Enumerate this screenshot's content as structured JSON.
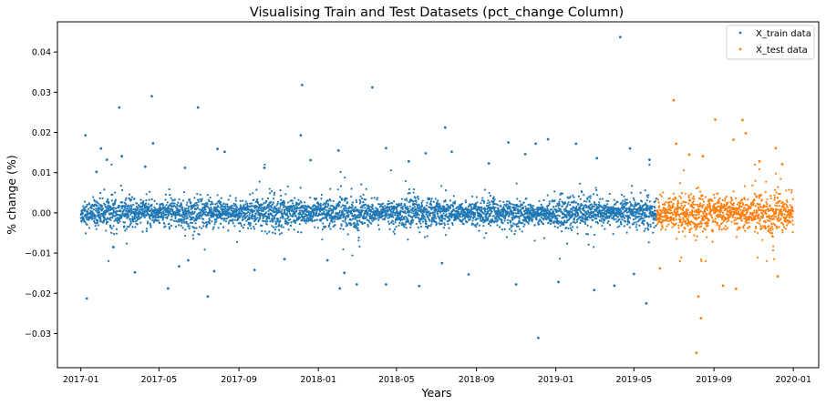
{
  "chart_data": {
    "type": "scatter",
    "title": "Visualising Train and Test Datasets (pct_change Column)",
    "xlabel": "Years",
    "ylabel": "% change (%)",
    "x_ticks": [
      "2017-01",
      "2017-05",
      "2017-09",
      "2018-01",
      "2018-05",
      "2018-09",
      "2019-01",
      "2019-05",
      "2019-09",
      "2020-01"
    ],
    "x_tick_values": [
      "2017-01-01",
      "2017-05-01",
      "2017-09-01",
      "2018-01-01",
      "2018-05-01",
      "2018-09-01",
      "2019-01-01",
      "2019-05-01",
      "2019-09-01",
      "2020-01-01"
    ],
    "y_ticks": [
      "−0.03",
      "−0.02",
      "−0.01",
      "0.00",
      "0.01",
      "0.02",
      "0.03",
      "0.04"
    ],
    "y_tick_values": [
      -0.03,
      -0.02,
      -0.01,
      0.0,
      0.01,
      0.02,
      0.03,
      0.04
    ],
    "xlim": [
      "2016-11-26",
      "2020-02-09"
    ],
    "ylim": [
      -0.0385,
      0.0475
    ],
    "grid": false,
    "legend_position": "top-right",
    "series": [
      {
        "name": "X_train data",
        "color": "#1f77b4",
        "x_range": [
          "2017-01-01",
          "2019-06-04"
        ],
        "typical_spread": 0.0035,
        "points": [
          {
            "x": "2017-01-08",
            "y": 0.0193
          },
          {
            "x": "2017-01-10",
            "y": -0.0213
          },
          {
            "x": "2017-01-25",
            "y": 0.0102
          },
          {
            "x": "2017-02-01",
            "y": 0.016
          },
          {
            "x": "2017-02-10",
            "y": 0.0132
          },
          {
            "x": "2017-02-20",
            "y": -0.0085
          },
          {
            "x": "2017-03-01",
            "y": 0.0262
          },
          {
            "x": "2017-03-05",
            "y": 0.0141
          },
          {
            "x": "2017-03-25",
            "y": -0.0148
          },
          {
            "x": "2017-04-10",
            "y": 0.0115
          },
          {
            "x": "2017-04-20",
            "y": 0.029
          },
          {
            "x": "2017-04-22",
            "y": 0.0173
          },
          {
            "x": "2017-05-15",
            "y": -0.0188
          },
          {
            "x": "2017-06-01",
            "y": -0.0133
          },
          {
            "x": "2017-06-10",
            "y": 0.0112
          },
          {
            "x": "2017-06-15",
            "y": -0.0118
          },
          {
            "x": "2017-06-30",
            "y": 0.0262
          },
          {
            "x": "2017-07-15",
            "y": -0.0208
          },
          {
            "x": "2017-07-25",
            "y": -0.0145
          },
          {
            "x": "2017-07-30",
            "y": 0.0159
          },
          {
            "x": "2017-08-10",
            "y": 0.0152
          },
          {
            "x": "2017-09-25",
            "y": -0.0142
          },
          {
            "x": "2017-10-10",
            "y": 0.0112
          },
          {
            "x": "2017-11-10",
            "y": -0.0115
          },
          {
            "x": "2017-12-05",
            "y": 0.0193
          },
          {
            "x": "2017-12-07",
            "y": 0.0318
          },
          {
            "x": "2017-12-20",
            "y": 0.0131
          },
          {
            "x": "2018-01-15",
            "y": -0.0118
          },
          {
            "x": "2018-02-01",
            "y": 0.0155
          },
          {
            "x": "2018-02-03",
            "y": -0.0188
          },
          {
            "x": "2018-02-10",
            "y": -0.0149
          },
          {
            "x": "2018-03-01",
            "y": -0.0178
          },
          {
            "x": "2018-03-25",
            "y": 0.0312
          },
          {
            "x": "2018-04-15",
            "y": 0.0161
          },
          {
            "x": "2018-04-15",
            "y": -0.0178
          },
          {
            "x": "2018-05-20",
            "y": 0.0128
          },
          {
            "x": "2018-06-05",
            "y": -0.0182
          },
          {
            "x": "2018-06-15",
            "y": 0.0148
          },
          {
            "x": "2018-07-10",
            "y": -0.0125
          },
          {
            "x": "2018-07-15",
            "y": 0.0212
          },
          {
            "x": "2018-07-25",
            "y": 0.0152
          },
          {
            "x": "2018-08-20",
            "y": -0.0153
          },
          {
            "x": "2018-09-20",
            "y": 0.0123
          },
          {
            "x": "2018-10-20",
            "y": 0.0175
          },
          {
            "x": "2018-11-01",
            "y": -0.0178
          },
          {
            "x": "2018-11-15",
            "y": 0.0146
          },
          {
            "x": "2018-12-01",
            "y": 0.0172
          },
          {
            "x": "2018-12-05",
            "y": -0.0311
          },
          {
            "x": "2018-12-20",
            "y": 0.0183
          },
          {
            "x": "2019-01-05",
            "y": -0.0172
          },
          {
            "x": "2019-02-01",
            "y": 0.0172
          },
          {
            "x": "2019-03-01",
            "y": -0.0192
          },
          {
            "x": "2019-03-05",
            "y": 0.0136
          },
          {
            "x": "2019-04-01",
            "y": -0.0181
          },
          {
            "x": "2019-04-10",
            "y": 0.0437
          },
          {
            "x": "2019-04-25",
            "y": 0.016
          },
          {
            "x": "2019-05-01",
            "y": -0.0152
          },
          {
            "x": "2019-05-20",
            "y": -0.0225
          },
          {
            "x": "2019-05-25",
            "y": 0.0132
          }
        ]
      },
      {
        "name": "X_test data",
        "color": "#ff7f0e",
        "x_range": [
          "2019-06-05",
          "2019-12-31"
        ],
        "typical_spread": 0.0045,
        "points": [
          {
            "x": "2019-06-10",
            "y": -0.0138
          },
          {
            "x": "2019-07-01",
            "y": 0.028
          },
          {
            "x": "2019-07-05",
            "y": 0.0172
          },
          {
            "x": "2019-07-25",
            "y": 0.0145
          },
          {
            "x": "2019-08-05",
            "y": -0.0348
          },
          {
            "x": "2019-08-08",
            "y": -0.0208
          },
          {
            "x": "2019-08-12",
            "y": -0.0262
          },
          {
            "x": "2019-08-15",
            "y": 0.0141
          },
          {
            "x": "2019-09-03",
            "y": 0.0232
          },
          {
            "x": "2019-09-15",
            "y": -0.0181
          },
          {
            "x": "2019-10-01",
            "y": 0.0182
          },
          {
            "x": "2019-10-05",
            "y": -0.0189
          },
          {
            "x": "2019-10-15",
            "y": 0.0231
          },
          {
            "x": "2019-10-20",
            "y": 0.0198
          },
          {
            "x": "2019-11-10",
            "y": 0.0128
          },
          {
            "x": "2019-12-05",
            "y": 0.0161
          },
          {
            "x": "2019-12-08",
            "y": -0.0158
          },
          {
            "x": "2019-12-15",
            "y": 0.0121
          }
        ]
      }
    ]
  }
}
